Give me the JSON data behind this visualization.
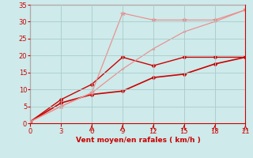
{
  "xlabel": "Vent moyen/en rafales ( km/h )",
  "background_color": "#ceeaea",
  "grid_color": "#aacccc",
  "xlim": [
    0,
    21
  ],
  "ylim": [
    0,
    35
  ],
  "xticks": [
    0,
    3,
    6,
    9,
    12,
    15,
    18,
    21
  ],
  "yticks": [
    0,
    5,
    10,
    15,
    20,
    25,
    30,
    35
  ],
  "series": [
    {
      "x": [
        0,
        3,
        6,
        9,
        12,
        15,
        18,
        21
      ],
      "y": [
        0.5,
        7.0,
        11.5,
        19.5,
        17.0,
        19.5,
        19.5,
        19.5
      ],
      "color": "#cc0000",
      "linewidth": 1.0,
      "marker": "D",
      "markersize": 2.5,
      "linestyle": "-"
    },
    {
      "x": [
        0,
        3,
        6,
        9,
        12,
        15,
        18,
        21
      ],
      "y": [
        0.5,
        6.0,
        8.5,
        9.5,
        13.5,
        14.5,
        17.5,
        19.5
      ],
      "color": "#cc0000",
      "linewidth": 1.2,
      "marker": "D",
      "markersize": 2.5,
      "linestyle": "-"
    },
    {
      "x": [
        0,
        3,
        6,
        9,
        12,
        15,
        18,
        21
      ],
      "y": [
        0.5,
        5.0,
        9.0,
        32.5,
        30.5,
        30.5,
        30.5,
        33.5
      ],
      "color": "#ee8888",
      "linewidth": 0.8,
      "marker": "*",
      "markersize": 4,
      "linestyle": "-"
    },
    {
      "x": [
        0,
        3,
        6,
        9,
        12,
        15,
        18,
        21
      ],
      "y": [
        0.5,
        5.0,
        9.0,
        16.0,
        22.0,
        27.0,
        30.0,
        33.5
      ],
      "color": "#ee8888",
      "linewidth": 0.8,
      "marker": "o",
      "markersize": 1.5,
      "linestyle": "-"
    }
  ]
}
